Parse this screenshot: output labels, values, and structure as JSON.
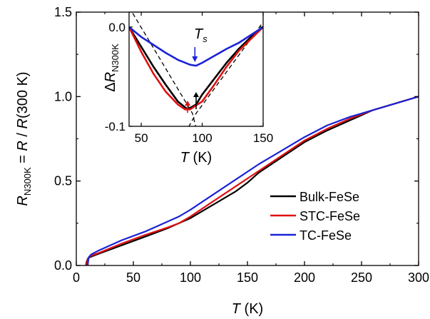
{
  "chart_data": [
    {
      "type": "line",
      "title": "",
      "xlabel": {
        "var": "T",
        "unit": " (K)"
      },
      "ylabel": {
        "var": "R",
        "sub": "N300K",
        "rest": " = ",
        "var2": "R",
        "rest2": " / ",
        "var3": "R",
        "rest3": "(300 K)"
      },
      "xlim": [
        0,
        300
      ],
      "ylim": [
        0,
        1.5
      ],
      "xticks": [
        "0",
        "50",
        "100",
        "150",
        "200",
        "250",
        "300"
      ],
      "yticks": [
        "0.0",
        "0.5",
        "1.0",
        "1.5"
      ],
      "legend": {
        "position": "bottom-right"
      },
      "series": [
        {
          "name": "Bulk-FeSe",
          "color": "#000000",
          "x": [
            8.5,
            9,
            10,
            12,
            20,
            40,
            60,
            80,
            90,
            100,
            120,
            140,
            150,
            160,
            180,
            200,
            220,
            240,
            260,
            280,
            300
          ],
          "y": [
            0.0,
            0.02,
            0.04,
            0.05,
            0.07,
            0.12,
            0.17,
            0.22,
            0.25,
            0.28,
            0.36,
            0.44,
            0.49,
            0.55,
            0.64,
            0.73,
            0.8,
            0.86,
            0.92,
            0.96,
            1.0
          ]
        },
        {
          "name": "STC-FeSe",
          "color": "#e01010",
          "x": [
            9,
            9.5,
            10,
            12,
            20,
            40,
            60,
            80,
            90,
            100,
            120,
            140,
            160,
            180,
            200,
            220,
            240,
            260,
            280,
            300
          ],
          "y": [
            0.0,
            0.02,
            0.04,
            0.055,
            0.075,
            0.13,
            0.18,
            0.225,
            0.25,
            0.29,
            0.38,
            0.47,
            0.56,
            0.65,
            0.74,
            0.81,
            0.87,
            0.92,
            0.96,
            1.0
          ]
        },
        {
          "name": "TC-FeSe",
          "color": "#1b22d6",
          "x": [
            10,
            10.5,
            11,
            13,
            20,
            40,
            60,
            80,
            90,
            100,
            120,
            140,
            160,
            180,
            200,
            220,
            240,
            250,
            260,
            280,
            300
          ],
          "y": [
            0.0,
            0.03,
            0.05,
            0.065,
            0.09,
            0.15,
            0.2,
            0.26,
            0.29,
            0.33,
            0.42,
            0.51,
            0.6,
            0.68,
            0.76,
            0.83,
            0.88,
            0.9,
            0.92,
            0.96,
            1.0
          ]
        }
      ]
    },
    {
      "type": "line",
      "title": "",
      "xlabel": {
        "var": "T",
        "unit": " (K)"
      },
      "ylabel": {
        "prefix": "Δ",
        "var": "R",
        "sub": "N300K"
      },
      "xlim": [
        40,
        150
      ],
      "ylim": [
        -0.1,
        0.015
      ],
      "xticks": [
        "50",
        "100",
        "150"
      ],
      "yticks": [
        "0.0",
        "-0.1"
      ],
      "annotations": [
        {
          "text": "T",
          "sub": "s",
          "color": "#000000"
        }
      ],
      "markers": [
        {
          "x": 88,
          "color": "#e01010"
        },
        {
          "x": 95,
          "color": "#000000"
        },
        {
          "x": 94,
          "color": "#1b22d6"
        }
      ],
      "dashed_guides": [
        {
          "x": [
            40,
            92,
            96
          ],
          "y": [
            0.02,
            -0.087,
            -0.107
          ]
        },
        {
          "x": [
            86,
            95,
            150
          ],
          "y": [
            -0.107,
            -0.087,
            0.005
          ]
        }
      ],
      "series": [
        {
          "name": "Bulk-FeSe",
          "color": "#000000",
          "x": [
            40,
            50,
            60,
            70,
            80,
            88,
            95,
            100,
            110,
            120,
            130,
            140,
            150
          ],
          "y": [
            0.0,
            -0.02,
            -0.04,
            -0.058,
            -0.075,
            -0.083,
            -0.078,
            -0.068,
            -0.052,
            -0.036,
            -0.022,
            -0.01,
            0.0
          ]
        },
        {
          "name": "STC-FeSe",
          "color": "#e01010",
          "x": [
            40,
            50,
            60,
            70,
            80,
            86,
            90,
            100,
            110,
            120,
            130,
            140,
            150
          ],
          "y": [
            0.0,
            -0.025,
            -0.047,
            -0.065,
            -0.078,
            -0.083,
            -0.083,
            -0.075,
            -0.058,
            -0.04,
            -0.024,
            -0.012,
            0.0
          ]
        },
        {
          "name": "TC-FeSe",
          "color": "#1b22d6",
          "x": [
            40,
            50,
            60,
            70,
            80,
            90,
            95,
            100,
            110,
            120,
            130,
            140,
            150
          ],
          "y": [
            0.0,
            -0.01,
            -0.018,
            -0.026,
            -0.033,
            -0.038,
            -0.039,
            -0.036,
            -0.029,
            -0.022,
            -0.016,
            -0.008,
            0.0
          ]
        }
      ]
    }
  ]
}
